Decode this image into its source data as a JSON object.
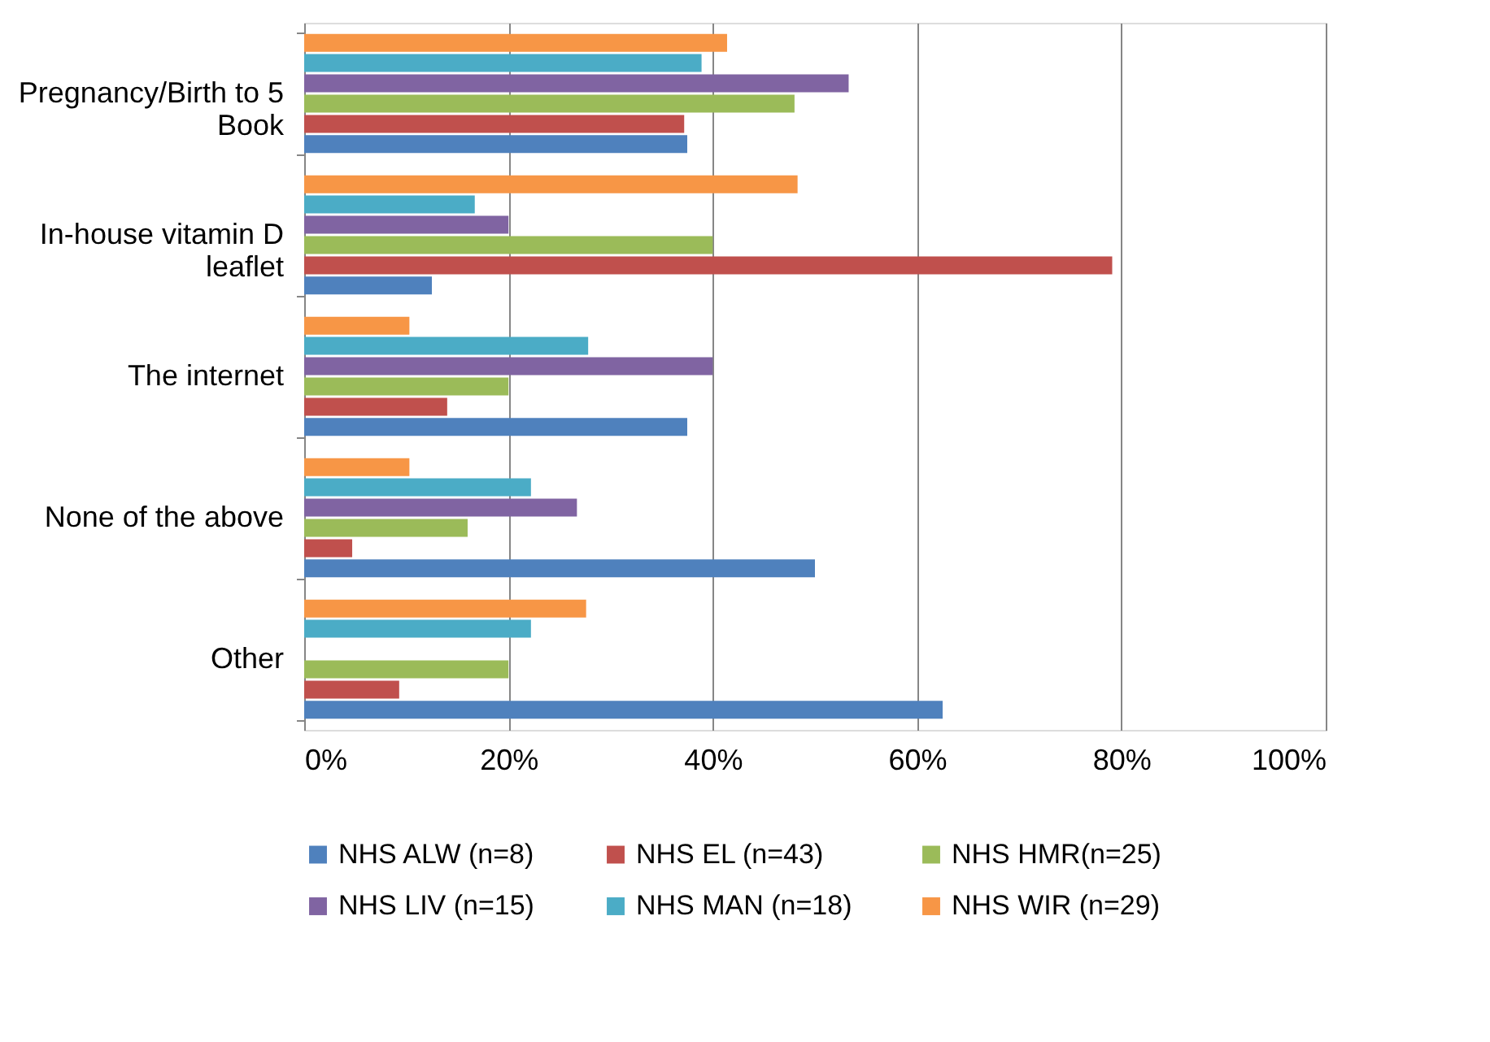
{
  "chart_data": {
    "type": "bar",
    "orientation": "horizontal",
    "categories": [
      "Pregnancy/Birth to 5 Book",
      "In-house vitamin D leaflet",
      "The internet",
      "None of the above",
      "Other"
    ],
    "series": [
      {
        "name": "NHS ALW (n=8)",
        "color": "#4f81bd",
        "values": [
          37.5,
          12.5,
          37.5,
          50,
          62.5
        ]
      },
      {
        "name": "NHS EL (n=43)",
        "color": "#c0504d",
        "values": [
          37.2,
          79.1,
          14.0,
          4.7,
          9.3
        ]
      },
      {
        "name": "NHS HMR(n=25)",
        "color": "#9bbb59",
        "values": [
          48,
          40,
          20,
          16,
          20
        ]
      },
      {
        "name": "NHS LIV (n=15)",
        "color": "#8064a2",
        "values": [
          53.3,
          20,
          40,
          26.7,
          0
        ]
      },
      {
        "name": "NHS MAN (n=18)",
        "color": "#4bacc6",
        "values": [
          38.9,
          16.7,
          27.8,
          22.2,
          22.2
        ]
      },
      {
        "name": "NHS WIR (n=29)",
        "color": "#f79646",
        "values": [
          41.4,
          48.3,
          10.3,
          10.3,
          27.6
        ]
      }
    ],
    "xlim": [
      0,
      100
    ],
    "xticks": [
      {
        "value": 0,
        "label": "0%"
      },
      {
        "value": 20,
        "label": "20%"
      },
      {
        "value": 40,
        "label": "40%"
      },
      {
        "value": 60,
        "label": "60%"
      },
      {
        "value": 80,
        "label": "80%"
      },
      {
        "value": 100,
        "label": "100%"
      }
    ],
    "grid": "x",
    "legend": "bottom"
  }
}
